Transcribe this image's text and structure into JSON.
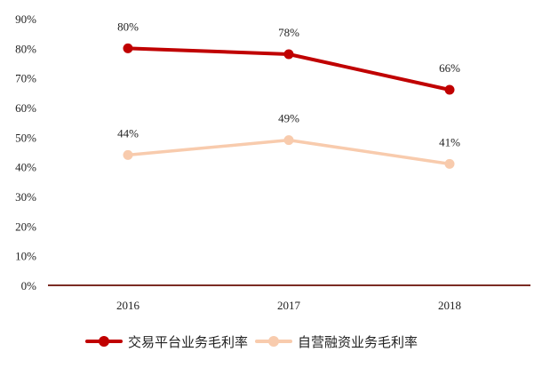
{
  "chart_data": {
    "type": "line",
    "title": "",
    "xlabel": "",
    "ylabel": "",
    "categories": [
      "2016",
      "2017",
      "2018"
    ],
    "series": [
      {
        "name": "交易平台业务毛利率",
        "values": [
          80,
          78,
          66
        ],
        "labels": [
          "80%",
          "78%",
          "66%"
        ],
        "color": "#c00000"
      },
      {
        "name": "自营融资业务毛利率",
        "values": [
          44,
          49,
          41
        ],
        "labels": [
          "44%",
          "49%",
          "41%"
        ],
        "color": "#f8cbad"
      }
    ],
    "ylim": [
      0,
      90
    ],
    "yticks": [
      "0%",
      "10%",
      "20%",
      "30%",
      "40%",
      "50%",
      "60%",
      "70%",
      "80%",
      "90%"
    ],
    "grid": false,
    "legend_position": "bottom",
    "axis_color": "#7b2c24"
  },
  "legend": {
    "items": [
      {
        "label": "交易平台业务毛利率",
        "color": "#c00000"
      },
      {
        "label": "自营融资业务毛利率",
        "color": "#f8cbad"
      }
    ]
  }
}
